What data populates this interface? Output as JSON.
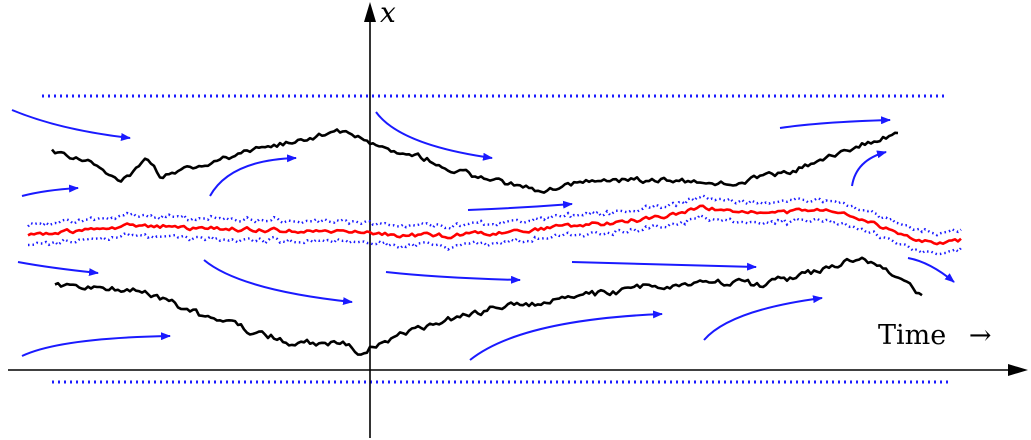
{
  "figure": {
    "x_axis_label": "x",
    "time_label": "Time",
    "time_arrow": "→"
  },
  "colors": {
    "axis": "#000000",
    "trajectory": "#000000",
    "flow_arrow": "#1a1aff",
    "boundary": "#1a1aff",
    "mean_path": "#ff0000",
    "band": "#1a1aff"
  }
}
